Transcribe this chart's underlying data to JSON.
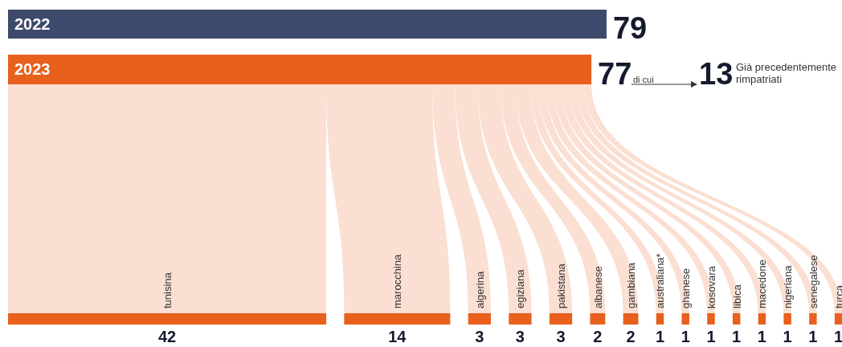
{
  "chart_data": [
    {
      "type": "bar",
      "orientation": "horizontal",
      "categories": [
        "2022",
        "2023"
      ],
      "values": [
        79,
        77
      ],
      "colors": [
        "#3e4a6c",
        "#e8601c"
      ],
      "data_labels": true,
      "annotations": [
        "di cui",
        "13",
        "Già precedentemente rimpatriati"
      ]
    },
    {
      "type": "other",
      "categories": [
        "tunisina",
        "marocchina",
        "algerina",
        "egiziana",
        "pakistana",
        "albanese",
        "gambiana",
        "australiana*",
        "ghanese",
        "kosovara",
        "libica",
        "macedone",
        "nigeriana",
        "senegalese",
        "turca"
      ],
      "values": [
        42,
        14,
        3,
        3,
        3,
        2,
        2,
        1,
        1,
        1,
        1,
        1,
        1,
        1,
        1
      ],
      "color": "#e8601c",
      "data_labels": true
    }
  ]
}
